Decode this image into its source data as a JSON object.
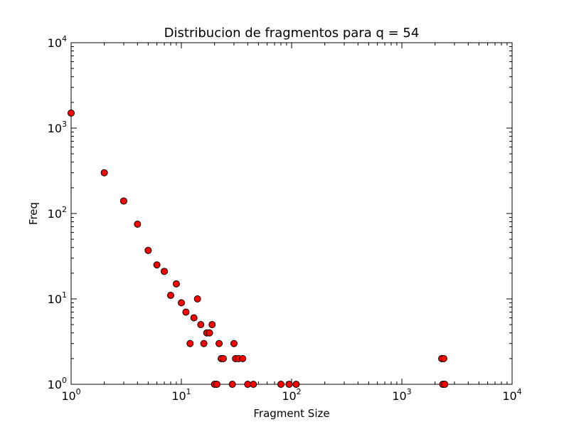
{
  "chart_data": {
    "type": "scatter",
    "title": "Distribucion de fragmentos para q = 54",
    "xlabel": "Fragment Size",
    "ylabel": "Freq",
    "xscale": "log",
    "yscale": "log",
    "xlim": [
      1,
      10000
    ],
    "ylim": [
      1,
      10000
    ],
    "grid": false,
    "point_color": "#ff0000",
    "xticks": [
      {
        "value": 1,
        "base": "10",
        "exp": "0"
      },
      {
        "value": 10,
        "base": "10",
        "exp": "1"
      },
      {
        "value": 100,
        "base": "10",
        "exp": "2"
      },
      {
        "value": 1000,
        "base": "10",
        "exp": "3"
      },
      {
        "value": 10000,
        "base": "10",
        "exp": "4"
      }
    ],
    "yticks": [
      {
        "value": 1,
        "base": "10",
        "exp": "0"
      },
      {
        "value": 10,
        "base": "10",
        "exp": "1"
      },
      {
        "value": 100,
        "base": "10",
        "exp": "2"
      },
      {
        "value": 1000,
        "base": "10",
        "exp": "3"
      },
      {
        "value": 10000,
        "base": "10",
        "exp": "4"
      }
    ],
    "points": [
      [
        1,
        1500
      ],
      [
        2,
        300
      ],
      [
        3,
        140
      ],
      [
        4,
        75
      ],
      [
        5,
        37
      ],
      [
        6,
        25
      ],
      [
        7,
        21
      ],
      [
        8,
        11
      ],
      [
        9,
        15
      ],
      [
        10,
        9
      ],
      [
        11,
        7
      ],
      [
        12,
        3
      ],
      [
        13,
        6
      ],
      [
        14,
        10
      ],
      [
        15,
        5
      ],
      [
        16,
        3
      ],
      [
        17,
        4
      ],
      [
        18,
        4
      ],
      [
        19,
        5
      ],
      [
        20,
        1
      ],
      [
        21,
        1
      ],
      [
        22,
        3
      ],
      [
        23,
        2
      ],
      [
        24,
        2
      ],
      [
        29,
        1
      ],
      [
        30,
        3
      ],
      [
        31,
        2
      ],
      [
        33,
        2
      ],
      [
        36,
        2
      ],
      [
        40,
        1
      ],
      [
        45,
        1
      ],
      [
        80,
        1
      ],
      [
        95,
        1
      ],
      [
        110,
        1
      ],
      [
        2300,
        2
      ],
      [
        2350,
        1
      ],
      [
        2400,
        2
      ],
      [
        2450,
        1
      ]
    ]
  }
}
